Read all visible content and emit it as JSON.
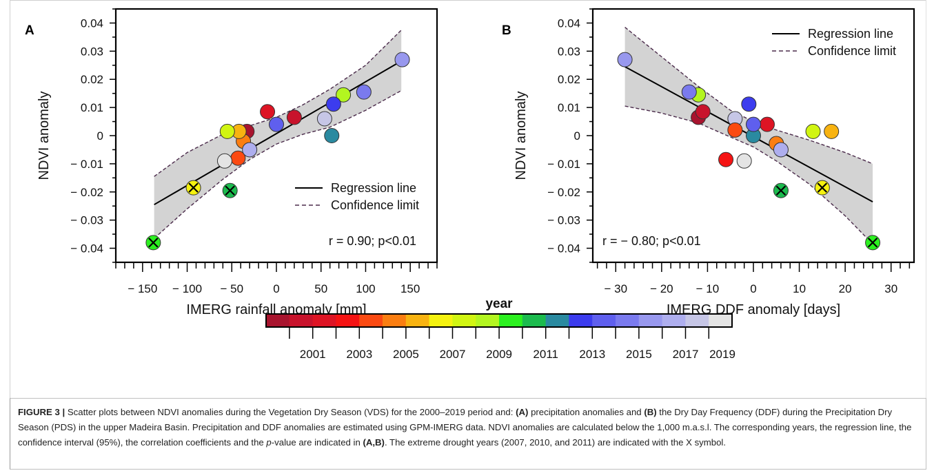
{
  "colors": {
    "year_palette": [
      "#a8142e",
      "#c8132c",
      "#dd1424",
      "#f51313",
      "#fb4a12",
      "#fb7e11",
      "#f8b311",
      "#f5f210",
      "#d1f512",
      "#b3f520",
      "#2cf020",
      "#1cbb4e",
      "#2a8aa0",
      "#3c3cee",
      "#5f5fee",
      "#7a7aee",
      "#9898ee",
      "#aeaeee",
      "#c6c6e6",
      "#e4e4e4"
    ],
    "band": "#d3d3d3",
    "confidence_line": "#4a2a4a",
    "regression_line": "#000000"
  },
  "chart_data": [
    {
      "panel": "A",
      "type": "scatter",
      "xlabel": "IMERG rainfall anomaly [mm]",
      "ylabel": "NDVI anomaly",
      "xlim": [
        -180,
        180
      ],
      "ylim": [
        -0.045,
        0.045
      ],
      "x_ticks": [
        -150,
        -100,
        -50,
        0,
        50,
        100,
        150
      ],
      "x_tick_labels": [
        "− 150",
        "− 100",
        "− 50",
        "0",
        "50",
        "100",
        "150"
      ],
      "y_ticks": [
        -0.04,
        -0.03,
        -0.02,
        -0.01,
        0,
        0.01,
        0.02,
        0.03,
        0.04
      ],
      "y_tick_labels": [
        "− 0.04",
        "− 0.03",
        "− 0.02",
        "− 0.01",
        "0",
        "0.01",
        "0.02",
        "0.03",
        "0.04"
      ],
      "legend": {
        "position": "bottom-right",
        "entries": [
          "Regression line",
          "Confidence limit"
        ]
      },
      "annotation": "r = 0.90; p<0.01",
      "regression": {
        "x": [
          -137,
          140
        ],
        "y": [
          -0.0245,
          0.0265
        ]
      },
      "confidence_upper": {
        "x": [
          -137,
          -100,
          -60,
          -30,
          0,
          30,
          60,
          100,
          140
        ],
        "y": [
          -0.0145,
          -0.006,
          0.0005,
          0.0035,
          0.0065,
          0.011,
          0.0165,
          0.025,
          0.0375
        ]
      },
      "confidence_lower": {
        "x": [
          -137,
          -100,
          -60,
          -30,
          0,
          30,
          60,
          100,
          140
        ],
        "y": [
          -0.0365,
          -0.026,
          -0.0155,
          -0.0085,
          -0.003,
          0.0005,
          0.003,
          0.009,
          0.016
        ]
      },
      "points": [
        {
          "year": 2000,
          "x": -33,
          "y": 0.0015
        },
        {
          "year": 2001,
          "x": 20,
          "y": 0.0065
        },
        {
          "year": 2002,
          "x": -10,
          "y": 0.0085
        },
        {
          "year": 2004,
          "x": -43,
          "y": -0.008
        },
        {
          "year": 2005,
          "x": -37,
          "y": -0.002
        },
        {
          "year": 2006,
          "x": -42,
          "y": 0.0015
        },
        {
          "year": 2007,
          "x": -93,
          "y": -0.0185,
          "extreme": true
        },
        {
          "year": 2008,
          "x": -55,
          "y": 0.0015
        },
        {
          "year": 2009,
          "x": 75,
          "y": 0.0145
        },
        {
          "year": 2010,
          "x": -138,
          "y": -0.038,
          "extreme": true
        },
        {
          "year": 2011,
          "x": -52,
          "y": -0.0195,
          "extreme": true
        },
        {
          "year": 2012,
          "x": 62,
          "y": 0.0
        },
        {
          "year": 2013,
          "x": 64,
          "y": 0.0112
        },
        {
          "year": 2015,
          "x": 98,
          "y": 0.0155
        },
        {
          "year": 2016,
          "x": 141,
          "y": 0.027
        },
        {
          "year": 2017,
          "x": -30,
          "y": -0.005
        },
        {
          "year": 2018,
          "x": 54,
          "y": 0.006
        },
        {
          "year": 2019,
          "x": -58,
          "y": -0.009
        },
        {
          "year": 2014,
          "x": 0,
          "y": 0.004
        }
      ]
    },
    {
      "panel": "B",
      "type": "scatter",
      "xlabel": "IMERG DDF anomaly [days]",
      "ylabel": "NDVI anomaly",
      "xlim": [
        -35,
        35
      ],
      "ylim": [
        -0.045,
        0.045
      ],
      "x_ticks": [
        -30,
        -20,
        -10,
        0,
        10,
        20,
        30
      ],
      "x_tick_labels": [
        "− 30",
        "− 20",
        "− 10",
        "0",
        "10",
        "20",
        "30"
      ],
      "y_ticks": [
        -0.04,
        -0.03,
        -0.02,
        -0.01,
        0,
        0.01,
        0.02,
        0.03,
        0.04
      ],
      "y_tick_labels": [
        "− 0.04",
        "− 0.03",
        "− 0.02",
        "− 0.01",
        "0",
        "0.01",
        "0.02",
        "0.03",
        "0.04"
      ],
      "legend": {
        "position": "top-right",
        "entries": [
          "Regression line",
          "Confidence limit"
        ]
      },
      "annotation": "r = − 0.80; p<0.01",
      "regression": {
        "x": [
          -28,
          26
        ],
        "y": [
          0.0245,
          -0.0235
        ]
      },
      "confidence_upper": {
        "x": [
          -28,
          -20,
          -12,
          -5,
          0,
          5,
          12,
          20,
          26
        ],
        "y": [
          0.0385,
          0.028,
          0.0175,
          0.009,
          0.005,
          0.002,
          -0.0015,
          -0.006,
          -0.01
        ]
      },
      "confidence_lower": {
        "x": [
          -28,
          -20,
          -12,
          -5,
          0,
          5,
          12,
          20,
          26
        ],
        "y": [
          0.0105,
          0.008,
          0.0045,
          -0.0005,
          -0.004,
          -0.009,
          -0.017,
          -0.0285,
          -0.0385
        ]
      },
      "points": [
        {
          "year": 2000,
          "x": -12,
          "y": 0.0065
        },
        {
          "year": 2001,
          "x": -11,
          "y": 0.0085
        },
        {
          "year": 2002,
          "x": 3,
          "y": 0.004
        },
        {
          "year": 2003,
          "x": -6,
          "y": -0.0085
        },
        {
          "year": 2005,
          "x": 5,
          "y": -0.0028
        },
        {
          "year": 2006,
          "x": 17,
          "y": 0.0015
        },
        {
          "year": 2007,
          "x": 15,
          "y": -0.0185,
          "extreme": true
        },
        {
          "year": 2008,
          "x": 13,
          "y": 0.0015
        },
        {
          "year": 2009,
          "x": -12,
          "y": 0.0145
        },
        {
          "year": 2010,
          "x": 26,
          "y": -0.038,
          "extreme": true
        },
        {
          "year": 2011,
          "x": 6,
          "y": -0.0195,
          "extreme": true
        },
        {
          "year": 2012,
          "x": 0,
          "y": 0.0
        },
        {
          "year": 2013,
          "x": -1,
          "y": 0.0112
        },
        {
          "year": 2015,
          "x": -14,
          "y": 0.0155
        },
        {
          "year": 2016,
          "x": -28,
          "y": 0.027
        },
        {
          "year": 2017,
          "x": 6,
          "y": -0.005
        },
        {
          "year": 2018,
          "x": -4,
          "y": 0.006
        },
        {
          "year": 2019,
          "x": -2,
          "y": -0.009
        },
        {
          "year": 2014,
          "x": 0,
          "y": 0.004
        },
        {
          "year": 2004,
          "x": -4,
          "y": 0.002
        }
      ]
    }
  ],
  "colorbar": {
    "title": "year",
    "years": [
      2000,
      2001,
      2002,
      2003,
      2004,
      2005,
      2006,
      2007,
      2008,
      2009,
      2010,
      2011,
      2012,
      2013,
      2014,
      2015,
      2016,
      2017,
      2018,
      2019
    ],
    "labels": [
      "2001",
      "2003",
      "2005",
      "2007",
      "2009",
      "2011",
      "2013",
      "2015",
      "2017",
      "2019"
    ]
  },
  "caption": {
    "lead": "FIGURE 3 |",
    "line1": " Scatter plots between NDVI anomalies during the Vegetation Dry Season (VDS) for the 2000–2019 period and: ",
    "a_tag": "(A)",
    "line1b": " precipitation anomalies and ",
    "b_tag": "(B)",
    "line1c": " the Dry Day Frequency (DDF) during the Precipitation Dry Season (PDS) in the upper Madeira Basin. Precipitation and DDF anomalies are estimated using GPM-IMERG data. NDVI anomalies are calculated below the 1,000 m.a.s.l. The corresponding years, the regression line, the confidence interval (95%), the correlation coefficients and the ",
    "p_italic": "p",
    "line2": "-value are indicated in ",
    "ab_tag": "(A,B)",
    "line3": ". The extreme drought years (2007, 2010, and 2011) are indicated with the X symbol."
  }
}
